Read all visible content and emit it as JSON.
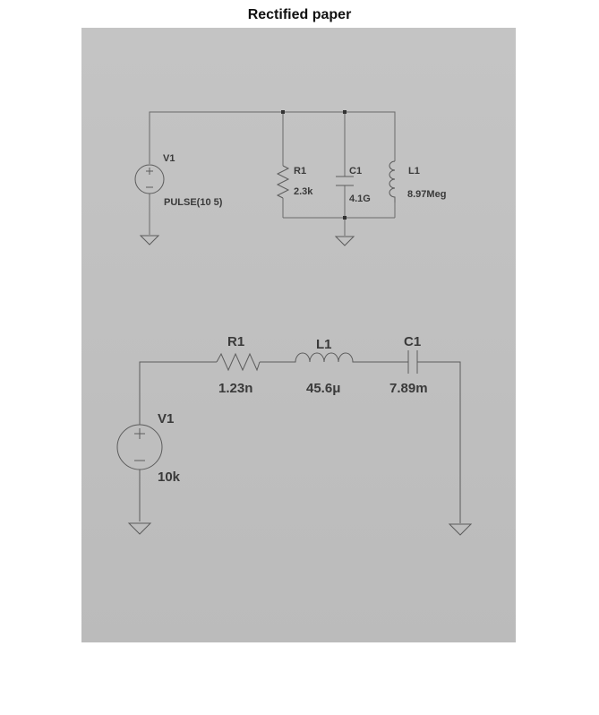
{
  "title": "Rectified paper",
  "circuit_top": {
    "source_name": "V1",
    "source_value": "PULSE(10 5)",
    "r_name": "R1",
    "r_value": "2.3k",
    "c_name": "C1",
    "c_value": "4.1G",
    "l_name": "L1",
    "l_value": "8.97Meg"
  },
  "circuit_bottom": {
    "source_name": "V1",
    "source_value": "10k",
    "r_name": "R1",
    "r_value": "1.23n",
    "l_name": "L1",
    "l_value": "45.6μ",
    "c_name": "C1",
    "c_value": "7.89m"
  }
}
